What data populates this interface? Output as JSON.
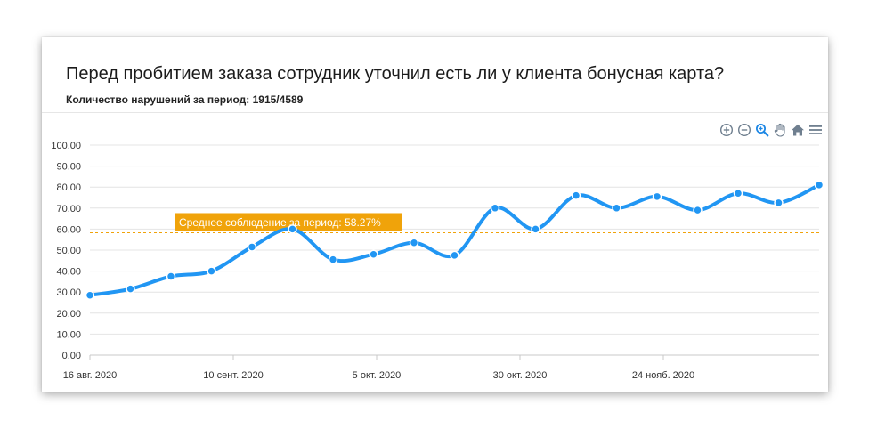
{
  "header": {
    "title": "Перед пробитием заказа сотрудник уточнил есть ли у клиента бонусная карта?",
    "subtitle": "Количество нарушений за период: 1915/4589"
  },
  "toolbar": {
    "icons": [
      "zoom-in-icon",
      "zoom-out-icon",
      "zoom-selection-icon",
      "pan-hand-icon",
      "home-icon",
      "menu-icon"
    ],
    "accent_color": "#6f7f8f",
    "active_color": "#1e88e5"
  },
  "chart_data": {
    "type": "line",
    "x_tick_labels": [
      "16 авг. 2020",
      "10 сент. 2020",
      "5 окт. 2020",
      "30 окт. 2020",
      "24 нояб. 2020"
    ],
    "y_tick_labels": [
      "0.00",
      "10.00",
      "20.00",
      "30.00",
      "40.00",
      "50.00",
      "60.00",
      "70.00",
      "80.00",
      "90.00",
      "100.00"
    ],
    "ylim": [
      0,
      100
    ],
    "grid": true,
    "series": [
      {
        "color": "#2196f3",
        "values": [
          28.5,
          31.5,
          37.5,
          40,
          51.5,
          60,
          45.5,
          48,
          53.5,
          47.5,
          70,
          60,
          76,
          70,
          75.5,
          69,
          77,
          72.5,
          81
        ]
      }
    ],
    "annotation": {
      "label": "Среднее соблюдение за период: 58.27%",
      "value": 58.27,
      "color": "#f0a30a"
    }
  }
}
